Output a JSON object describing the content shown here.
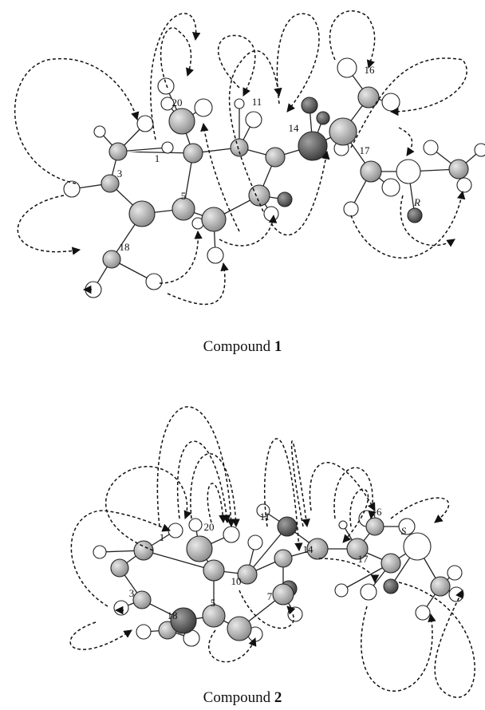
{
  "figures": [
    {
      "labels": [
        "3",
        "20",
        "1",
        "11",
        "14",
        "16",
        "17",
        "5",
        "18",
        "R"
      ],
      "caption": {
        "prefix": "Compound",
        "number": "1"
      }
    },
    {
      "labels": [
        "1",
        "20",
        "11",
        "10",
        "14",
        "16",
        "17",
        "3",
        "5",
        "7",
        "18",
        "S"
      ],
      "caption": {
        "prefix": "Compound",
        "number": "2"
      }
    }
  ]
}
